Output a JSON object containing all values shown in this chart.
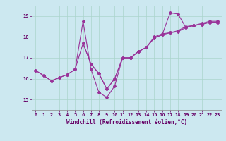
{
  "xlabel": "Windchill (Refroidissement éolien,°C)",
  "bg_color": "#cce8f0",
  "line_color": "#993399",
  "grid_color": "#aad4cc",
  "xlim": [
    -0.5,
    23.5
  ],
  "ylim": [
    14.5,
    19.5
  ],
  "yticks": [
    15,
    16,
    17,
    18,
    19
  ],
  "xticks": [
    0,
    1,
    2,
    3,
    4,
    5,
    6,
    7,
    8,
    9,
    10,
    11,
    12,
    13,
    14,
    15,
    16,
    17,
    18,
    19,
    20,
    21,
    22,
    23
  ],
  "series1_x": [
    0,
    1,
    2,
    3,
    4,
    5,
    6,
    7,
    8,
    9,
    10,
    11,
    12,
    13,
    14,
    15,
    16,
    17,
    18,
    19,
    20,
    21,
    22,
    23
  ],
  "series1_y": [
    16.4,
    16.15,
    15.9,
    16.05,
    16.2,
    16.45,
    18.75,
    16.45,
    15.35,
    15.1,
    15.65,
    17.0,
    17.0,
    17.3,
    17.5,
    18.0,
    18.15,
    18.2,
    18.3,
    18.5,
    18.55,
    18.65,
    18.75,
    18.75
  ],
  "series2_x": [
    0,
    1,
    2,
    3,
    4,
    5,
    6,
    7,
    8,
    9,
    10,
    11,
    12,
    13,
    14,
    15,
    16,
    17,
    18,
    19,
    20,
    21,
    22,
    23
  ],
  "series2_y": [
    16.4,
    16.15,
    15.9,
    16.05,
    16.2,
    16.45,
    17.7,
    16.7,
    16.25,
    15.5,
    16.0,
    17.0,
    17.0,
    17.3,
    17.5,
    17.95,
    18.1,
    19.15,
    19.1,
    18.45,
    18.55,
    18.6,
    18.7,
    18.7
  ],
  "series3_x": [
    6,
    7,
    8,
    9,
    10,
    11,
    12,
    13,
    14,
    15,
    16,
    17,
    18,
    19,
    20,
    21,
    22,
    23
  ],
  "series3_y": [
    17.7,
    16.7,
    16.25,
    15.5,
    16.0,
    17.0,
    17.0,
    17.3,
    17.5,
    17.95,
    18.1,
    18.2,
    18.25,
    18.45,
    18.55,
    18.6,
    18.7,
    18.7
  ]
}
